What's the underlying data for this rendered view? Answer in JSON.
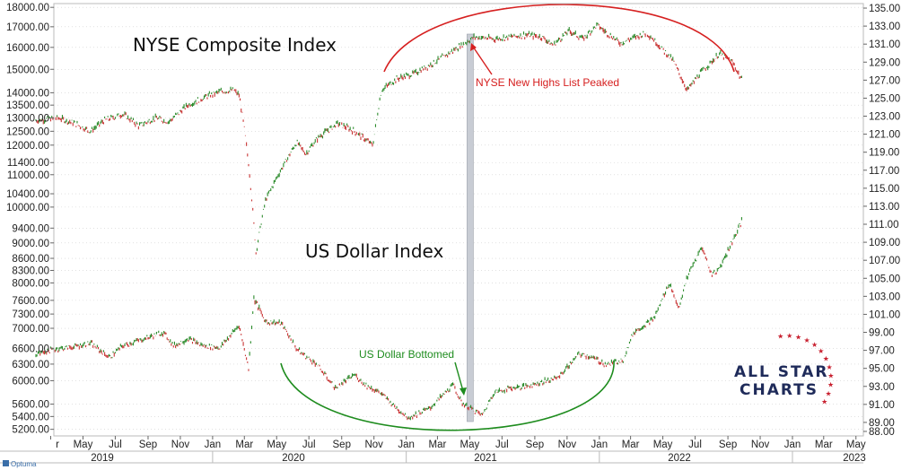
{
  "chart_data": {
    "type": "line",
    "left_axis": {
      "label": "",
      "ticks": [
        "18000.00",
        "17000.00",
        "16000.00",
        "15000.00",
        "14000.00",
        "13500.00",
        "13000.00",
        "12500.00",
        "12000.00",
        "11400.00",
        "11000.00",
        "10400.00",
        "10000.00",
        "9400.00",
        "9000.00",
        "8600.00",
        "8300.00",
        "8000.00",
        "7600.00",
        "7300.00",
        "7000.00",
        "6600.00",
        "6300.00",
        "6000.00",
        "5600.00",
        "5400.00",
        "5200.00"
      ],
      "ylim": [
        5100,
        18200
      ],
      "scale": "log"
    },
    "right_axis": {
      "label": "",
      "ticks": [
        "135.00",
        "133.00",
        "131.00",
        "129.00",
        "127.00",
        "125.00",
        "123.00",
        "121.00",
        "119.00",
        "117.00",
        "115.00",
        "113.00",
        "111.00",
        "109.00",
        "107.00",
        "105.00",
        "103.00",
        "101.00",
        "99.00",
        "97.00",
        "95.00",
        "93.00",
        "91.00",
        "89.00",
        "88.00"
      ],
      "ylim": [
        87.5,
        135.5
      ],
      "scale": "linear"
    },
    "x_axis": {
      "months": [
        "Mar",
        "May",
        "Jul",
        "Sep",
        "Nov",
        "Jan",
        "Mar",
        "May",
        "Jul",
        "Sep",
        "Nov",
        "Jan",
        "Mar",
        "May",
        "Jul",
        "Sep",
        "Nov",
        "Jan",
        "Mar",
        "May",
        "Jul",
        "Sep",
        "Nov",
        "Jan",
        "Mar",
        "May"
      ],
      "month_labels": [
        "r",
        "May",
        "Jul",
        "Sep",
        "Nov",
        "Jan",
        "Mar",
        "May",
        "Jul",
        "Sep",
        "Nov",
        "Jan",
        "Mar",
        "May",
        "Jul",
        "Sep",
        "Nov",
        "Jan",
        "Mar",
        "May",
        "Jul",
        "Sep",
        "Nov",
        "Jan",
        "Mar",
        "May"
      ],
      "years": [
        "2019",
        "2020",
        "2021",
        "2022",
        "2023"
      ],
      "range": [
        "2019-02",
        "2023-05"
      ]
    },
    "series": [
      {
        "name": "NYSE Composite Index",
        "axis": "left",
        "color": "#2a8a2a",
        "down_color": "#c83232",
        "dates": [
          "2019-02-01",
          "2019-03-15",
          "2019-04-15",
          "2019-05-15",
          "2019-06-10",
          "2019-07-15",
          "2019-08-15",
          "2019-09-15",
          "2019-10-10",
          "2019-11-15",
          "2019-12-15",
          "2020-01-15",
          "2020-02-10",
          "2020-02-20",
          "2020-03-01",
          "2020-03-10",
          "2020-03-23",
          "2020-04-10",
          "2020-05-01",
          "2020-06-08",
          "2020-06-25",
          "2020-07-20",
          "2020-08-25",
          "2020-09-25",
          "2020-10-30",
          "2020-11-15",
          "2020-12-15",
          "2021-01-15",
          "2021-02-15",
          "2021-03-15",
          "2021-04-15",
          "2021-05-10",
          "2021-06-15",
          "2021-07-15",
          "2021-08-15",
          "2021-09-15",
          "2021-10-05",
          "2021-11-05",
          "2021-12-01",
          "2021-12-28",
          "2022-01-10",
          "2022-02-10",
          "2022-03-10",
          "2022-04-01",
          "2022-05-20",
          "2022-06-16",
          "2022-07-10",
          "2022-08-16",
          "2022-09-10",
          "2022-09-28"
        ],
        "values": [
          12900,
          13000,
          12800,
          12500,
          12900,
          13150,
          12700,
          13000,
          12850,
          13500,
          13800,
          14050,
          14100,
          13900,
          12600,
          11200,
          8750,
          10200,
          10900,
          12100,
          11700,
          12300,
          12800,
          12500,
          12000,
          14100,
          14600,
          14800,
          15200,
          15600,
          16100,
          16500,
          16400,
          16500,
          16600,
          16500,
          16100,
          16800,
          16400,
          17100,
          16800,
          16200,
          16500,
          16700,
          15400,
          14100,
          14800,
          15700,
          15300,
          14500
        ]
      },
      {
        "name": "US Dollar Index",
        "axis": "right",
        "color": "#2a8a2a",
        "down_color": "#c83232",
        "dates": [
          "2019-02-01",
          "2019-03-15",
          "2019-04-15",
          "2019-05-15",
          "2019-06-20",
          "2019-07-15",
          "2019-08-15",
          "2019-09-30",
          "2019-10-20",
          "2019-11-15",
          "2019-12-15",
          "2020-01-15",
          "2020-02-20",
          "2020-03-09",
          "2020-03-19",
          "2020-04-10",
          "2020-05-10",
          "2020-06-10",
          "2020-07-15",
          "2020-08-20",
          "2020-09-25",
          "2020-10-15",
          "2020-11-15",
          "2020-12-15",
          "2021-01-06",
          "2021-02-15",
          "2021-03-31",
          "2021-04-15",
          "2021-05-25",
          "2021-06-15",
          "2021-07-15",
          "2021-08-15",
          "2021-09-15",
          "2021-10-15",
          "2021-11-24",
          "2021-12-15",
          "2022-01-15",
          "2022-02-15",
          "2022-03-07",
          "2022-04-15",
          "2022-05-13",
          "2022-06-01",
          "2022-06-15",
          "2022-07-14",
          "2022-08-01",
          "2022-08-15",
          "2022-09-28"
        ],
        "values": [
          96.6,
          97.2,
          97.4,
          97.8,
          96.2,
          97.5,
          98.1,
          99.0,
          97.5,
          98.3,
          97.5,
          97.3,
          99.8,
          95.0,
          102.8,
          100.2,
          100.0,
          97.0,
          95.5,
          92.8,
          94.3,
          93.2,
          92.2,
          90.5,
          89.5,
          90.6,
          93.2,
          91.2,
          89.8,
          92.3,
          92.8,
          93.0,
          93.5,
          94.0,
          96.6,
          96.3,
          95.4,
          96.0,
          99.0,
          100.6,
          104.5,
          101.6,
          105.0,
          108.5,
          105.4,
          106.0,
          111.4
        ]
      }
    ],
    "annotations": {
      "nyse_title": "NYSE Composite Index",
      "usd_title": "US Dollar Index",
      "peak_note": "NYSE New Highs List Peaked",
      "bottom_note": "US Dollar Bottomed"
    },
    "colors": {
      "up": "#2a8a2a",
      "down": "#c83232",
      "arc_red": "#d62020",
      "arc_green": "#1e8c1e",
      "highlight_band": "#c8ccd4",
      "grid": "#cfcfcf",
      "logo_navy": "#1f2b5a",
      "logo_red": "#c8202f"
    },
    "logo": {
      "line1": "ALL STAR",
      "line2": "CHARTS"
    },
    "watermark": "Optuma"
  }
}
